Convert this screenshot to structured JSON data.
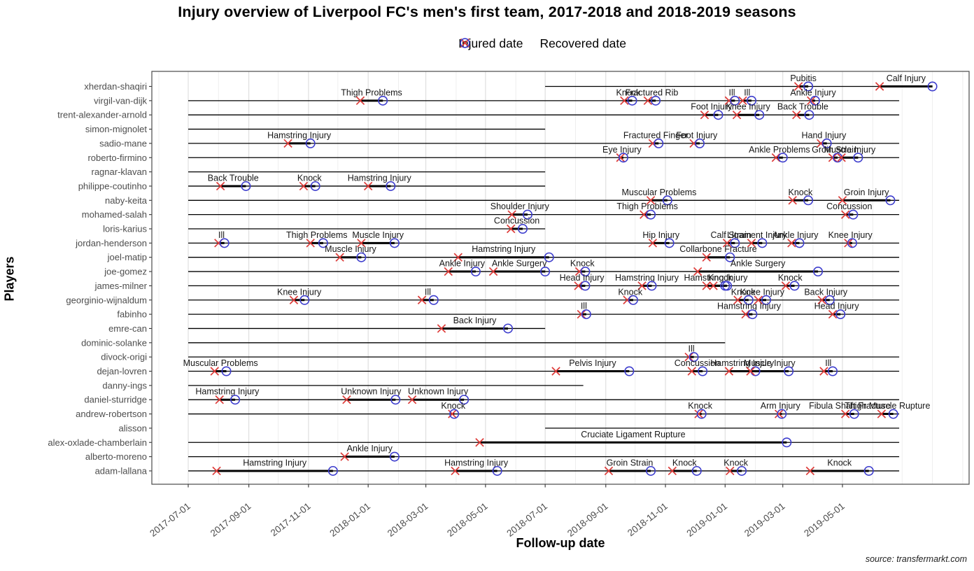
{
  "title": "Injury overview of Liverpool FC's men's first team, 2017-2018 and 2018-2019 seasons",
  "legend": {
    "injured_label": "Injured date",
    "recovered_label": "Recovered date"
  },
  "x_axis": {
    "label": "Follow-up date",
    "ticks": [
      "2017-07-01",
      "2017-09-01",
      "2017-11-01",
      "2018-01-01",
      "2018-03-01",
      "2018-05-01",
      "2018-07-01",
      "2018-09-01",
      "2018-11-01",
      "2019-01-01",
      "2019-03-01",
      "2019-05-01"
    ]
  },
  "y_axis": {
    "label": "Players"
  },
  "source": "source: transfermarkt.com",
  "colors": {
    "injured": "#dd3b38",
    "recovered": "#3c3ccd",
    "follow_up_line": "#000000",
    "injury_segment": "#000000",
    "grid_major": "#d9d9d9",
    "grid_minor": "#eeeeee",
    "panel_border": "#4a4a4a",
    "axis_text": "#4d4d4d",
    "label_text": "#161616"
  },
  "chart_data": {
    "type": "timeline",
    "x_range_visible": [
      "2017-05-25",
      "2019-09-05"
    ],
    "legend_position": "top",
    "grid": "vertical-months",
    "players": [
      {
        "name": "xherdan-shaqiri",
        "follow_up": [
          [
            "2018-07-01",
            "2019-08-01"
          ]
        ],
        "injuries": [
          {
            "label": "Pubitis",
            "injured": "2019-03-17",
            "recovered": "2019-03-27"
          },
          {
            "label": "Calf Injury",
            "injured": "2019-06-08",
            "recovered": "2019-08-01"
          }
        ]
      },
      {
        "name": "virgil-van-dijk",
        "follow_up": [
          [
            "2017-07-01",
            "2019-06-28"
          ]
        ],
        "injuries": [
          {
            "label": "Thigh Problems",
            "injured": "2017-12-24",
            "recovered": "2018-01-16"
          },
          {
            "label": "Knock",
            "injured": "2018-09-20",
            "recovered": "2018-09-28"
          },
          {
            "label": "Fractured Rib",
            "injured": "2018-10-14",
            "recovered": "2018-10-22"
          },
          {
            "label": "Ill",
            "injured": "2019-01-05",
            "recovered": "2019-01-11"
          },
          {
            "label": "Ill",
            "injured": "2019-01-19",
            "recovered": "2019-01-28"
          },
          {
            "label": "Ankle Injury",
            "injured": "2019-03-30",
            "recovered": "2019-04-03"
          }
        ]
      },
      {
        "name": "trent-alexander-arnold",
        "follow_up": [
          [
            "2017-07-01",
            "2019-06-28"
          ]
        ],
        "injuries": [
          {
            "label": "Foot Injury",
            "injured": "2018-12-11",
            "recovered": "2018-12-25"
          },
          {
            "label": "Knee Injury",
            "injured": "2019-01-13",
            "recovered": "2019-02-05"
          },
          {
            "label": "Back Trouble",
            "injured": "2019-03-15",
            "recovered": "2019-03-28"
          }
        ]
      },
      {
        "name": "simon-mignolet",
        "follow_up": [
          [
            "2017-07-01",
            "2018-07-01"
          ]
        ],
        "injuries": []
      },
      {
        "name": "sadio-mane",
        "follow_up": [
          [
            "2017-07-01",
            "2019-06-28"
          ]
        ],
        "injuries": [
          {
            "label": "Hamstring Injury",
            "injured": "2017-10-11",
            "recovered": "2017-11-03"
          },
          {
            "label": "Fractured Finger",
            "injured": "2018-10-19",
            "recovered": "2018-10-25"
          },
          {
            "label": "Foot Injury",
            "injured": "2018-11-30",
            "recovered": "2018-12-06"
          },
          {
            "label": "Hand Injury",
            "injured": "2019-04-09",
            "recovered": "2019-04-15"
          }
        ]
      },
      {
        "name": "roberto-firmino",
        "follow_up": [
          [
            "2017-07-01",
            "2019-06-28"
          ]
        ],
        "injuries": [
          {
            "label": "Eye Injury",
            "injured": "2018-09-16",
            "recovered": "2018-09-19"
          },
          {
            "label": "Ankle Problems",
            "injured": "2019-02-22",
            "recovered": "2019-03-01"
          },
          {
            "label": "Groin Strain",
            "injured": "2019-04-21",
            "recovered": "2019-04-26"
          },
          {
            "label": "Muscle Injury",
            "injured": "2019-04-30",
            "recovered": "2019-05-17"
          }
        ]
      },
      {
        "name": "ragnar-klavan",
        "follow_up": [
          [
            "2017-07-01",
            "2018-07-01"
          ]
        ],
        "injuries": []
      },
      {
        "name": "philippe-coutinho",
        "follow_up": [
          [
            "2017-07-01",
            "2018-07-01"
          ]
        ],
        "injuries": [
          {
            "label": "Back Trouble",
            "injured": "2017-08-03",
            "recovered": "2017-08-29"
          },
          {
            "label": "Knock",
            "injured": "2017-10-27",
            "recovered": "2017-11-08"
          },
          {
            "label": "Hamstring Injury",
            "injured": "2018-01-01",
            "recovered": "2018-01-24"
          }
        ]
      },
      {
        "name": "naby-keita",
        "follow_up": [
          [
            "2017-07-01",
            "2019-06-28"
          ]
        ],
        "injuries": [
          {
            "label": "Muscular Problems",
            "injured": "2018-10-17",
            "recovered": "2018-11-03"
          },
          {
            "label": "Knock",
            "injured": "2019-03-11",
            "recovered": "2019-03-27"
          },
          {
            "label": "Groin Injury",
            "injured": "2019-05-01",
            "recovered": "2019-06-19"
          }
        ]
      },
      {
        "name": "mohamed-salah",
        "follow_up": [
          [
            "2017-07-01",
            "2019-06-28"
          ]
        ],
        "injuries": [
          {
            "label": "Shoulder Injury",
            "injured": "2018-05-28",
            "recovered": "2018-06-13"
          },
          {
            "label": "Thigh Problems",
            "injured": "2018-10-10",
            "recovered": "2018-10-17"
          },
          {
            "label": "Concussion",
            "injured": "2019-05-04",
            "recovered": "2019-05-12"
          }
        ]
      },
      {
        "name": "loris-karius",
        "follow_up": [
          [
            "2017-07-01",
            "2018-07-01"
          ]
        ],
        "injuries": [
          {
            "label": "Concussion",
            "injured": "2018-05-27",
            "recovered": "2018-06-08"
          }
        ]
      },
      {
        "name": "jordan-henderson",
        "follow_up": [
          [
            "2017-07-01",
            "2019-06-28"
          ]
        ],
        "injuries": [
          {
            "label": "Ill",
            "injured": "2017-08-01",
            "recovered": "2017-08-07"
          },
          {
            "label": "Thigh Problems",
            "injured": "2017-11-03",
            "recovered": "2017-11-16"
          },
          {
            "label": "Muscle Injury",
            "injured": "2017-12-25",
            "recovered": "2018-01-28"
          },
          {
            "label": "Hip Injury",
            "injured": "2018-10-19",
            "recovered": "2018-11-05"
          },
          {
            "label": "Calf Strain",
            "injured": "2019-01-03",
            "recovered": "2019-01-11"
          },
          {
            "label": "Ligament Injury",
            "injured": "2019-01-28",
            "recovered": "2019-02-08"
          },
          {
            "label": "Ankle Injury",
            "injured": "2019-03-10",
            "recovered": "2019-03-18"
          },
          {
            "label": "Knee Injury",
            "injured": "2019-05-07",
            "recovered": "2019-05-11"
          }
        ]
      },
      {
        "name": "joel-matip",
        "follow_up": [
          [
            "2017-07-01",
            "2019-06-28"
          ]
        ],
        "injuries": [
          {
            "label": "Muscle Injury",
            "injured": "2017-12-03",
            "recovered": "2017-12-25"
          },
          {
            "label": "Hamstring Injury",
            "injured": "2018-04-03",
            "recovered": "2018-07-05"
          },
          {
            "label": "Collarbone Fracture",
            "injured": "2018-12-13",
            "recovered": "2019-01-06"
          }
        ]
      },
      {
        "name": "joe-gomez",
        "follow_up": [
          [
            "2017-07-01",
            "2019-06-28"
          ]
        ],
        "injuries": [
          {
            "label": "Ankle Injury",
            "injured": "2018-03-24",
            "recovered": "2018-04-21"
          },
          {
            "label": "Ankle Surgery",
            "injured": "2018-05-09",
            "recovered": "2018-07-01"
          },
          {
            "label": "Knock",
            "injured": "2018-08-05",
            "recovered": "2018-08-11"
          },
          {
            "label": "Ankle Surgery",
            "injured": "2018-12-04",
            "recovered": "2019-04-06"
          }
        ]
      },
      {
        "name": "james-milner",
        "follow_up": [
          [
            "2017-07-01",
            "2019-06-28"
          ]
        ],
        "injuries": [
          {
            "label": "Head Injury",
            "injured": "2018-08-04",
            "recovered": "2018-08-11"
          },
          {
            "label": "Hamstring Injury",
            "injured": "2018-10-08",
            "recovered": "2018-10-18"
          },
          {
            "label": "Hamstring Injury",
            "injured": "2018-12-13",
            "recovered": "2019-01-01"
          },
          {
            "label": "Knock",
            "injured": "2018-12-20",
            "recovered": "2019-01-03"
          },
          {
            "label": "Knock",
            "injured": "2019-03-04",
            "recovered": "2019-03-13"
          }
        ]
      },
      {
        "name": "georginio-wijnaldum",
        "follow_up": [
          [
            "2017-07-01",
            "2019-06-28"
          ]
        ],
        "injuries": [
          {
            "label": "Knee Injury",
            "injured": "2017-10-17",
            "recovered": "2017-10-28"
          },
          {
            "label": "Ill",
            "injured": "2018-02-25",
            "recovered": "2018-03-09"
          },
          {
            "label": "Knock",
            "injured": "2018-09-23",
            "recovered": "2018-09-29"
          },
          {
            "label": "Knock",
            "injured": "2019-01-14",
            "recovered": "2019-01-25"
          },
          {
            "label": "Knee Injury",
            "injured": "2019-02-04",
            "recovered": "2019-02-12"
          },
          {
            "label": "Back Injury",
            "injured": "2019-04-10",
            "recovered": "2019-04-18"
          }
        ]
      },
      {
        "name": "fabinho",
        "follow_up": [
          [
            "2017-07-01",
            "2019-06-28"
          ]
        ],
        "injuries": [
          {
            "label": "Ill",
            "injured": "2018-08-07",
            "recovered": "2018-08-12"
          },
          {
            "label": "Hamstring Injury",
            "injured": "2019-01-22",
            "recovered": "2019-01-29"
          },
          {
            "label": "Head Injury",
            "injured": "2019-04-21",
            "recovered": "2019-04-29"
          }
        ]
      },
      {
        "name": "emre-can",
        "follow_up": [
          [
            "2017-07-01",
            "2018-07-01"
          ]
        ],
        "injuries": [
          {
            "label": "Back Injury",
            "injured": "2018-03-17",
            "recovered": "2018-05-24"
          }
        ]
      },
      {
        "name": "dominic-solanke",
        "follow_up": [
          [
            "2017-07-01",
            "2019-01-01"
          ]
        ],
        "injuries": []
      },
      {
        "name": "divock-origi",
        "follow_up": [
          [
            "2017-07-01",
            "2019-06-28"
          ]
        ],
        "injuries": [
          {
            "label": "Ill",
            "injured": "2018-11-25",
            "recovered": "2018-11-30"
          }
        ]
      },
      {
        "name": "dejan-lovren",
        "follow_up": [
          [
            "2017-07-01",
            "2019-06-28"
          ]
        ],
        "injuries": [
          {
            "label": "Muscular Problems",
            "injured": "2017-07-28",
            "recovered": "2017-08-09"
          },
          {
            "label": "Pelvis Injury",
            "injured": "2018-07-12",
            "recovered": "2018-09-25"
          },
          {
            "label": "Concussion",
            "injured": "2018-11-28",
            "recovered": "2018-12-09"
          },
          {
            "label": "Hamstring Injury",
            "injured": "2019-01-05",
            "recovered": "2019-02-01"
          },
          {
            "label": "Muscle Injury",
            "injured": "2019-01-27",
            "recovered": "2019-03-07"
          },
          {
            "label": "Ill",
            "injured": "2019-04-12",
            "recovered": "2019-04-21"
          }
        ]
      },
      {
        "name": "danny-ings",
        "follow_up": [
          [
            "2017-07-01",
            "2018-08-09"
          ]
        ],
        "injuries": []
      },
      {
        "name": "daniel-sturridge",
        "follow_up": [
          [
            "2017-07-01",
            "2019-06-28"
          ]
        ],
        "injuries": [
          {
            "label": "Hamstring Injury",
            "injured": "2017-08-02",
            "recovered": "2017-08-18"
          },
          {
            "label": "Unknown Injury",
            "injured": "2017-12-10",
            "recovered": "2018-01-29"
          },
          {
            "label": "Unknown Injury",
            "injured": "2018-02-15",
            "recovered": "2018-04-09"
          }
        ]
      },
      {
        "name": "andrew-robertson",
        "follow_up": [
          [
            "2017-07-01",
            "2019-06-28"
          ]
        ],
        "injuries": [
          {
            "label": "Knock",
            "injured": "2018-03-28",
            "recovered": "2018-03-30"
          },
          {
            "label": "Knock",
            "injured": "2018-12-05",
            "recovered": "2018-12-08"
          },
          {
            "label": "Arm Injury",
            "injured": "2019-02-25",
            "recovered": "2019-02-28"
          },
          {
            "label": "Fibula Shaft Fracture",
            "injured": "2019-05-04",
            "recovered": "2019-05-13"
          },
          {
            "label": "Thigh Muscle Rupture",
            "injured": "2019-06-10",
            "recovered": "2019-06-22"
          }
        ]
      },
      {
        "name": "alisson",
        "follow_up": [
          [
            "2018-07-01",
            "2019-06-28"
          ]
        ],
        "injuries": []
      },
      {
        "name": "alex-oxlade-chamberlain",
        "follow_up": [
          [
            "2017-07-01",
            "2019-06-28"
          ]
        ],
        "injuries": [
          {
            "label": "Cruciate Ligament Rupture",
            "injured": "2018-04-25",
            "recovered": "2019-03-05"
          }
        ]
      },
      {
        "name": "alberto-moreno",
        "follow_up": [
          [
            "2017-07-01",
            "2019-06-28"
          ]
        ],
        "injuries": [
          {
            "label": "Ankle Injury",
            "injured": "2017-12-08",
            "recovered": "2018-01-28"
          }
        ]
      },
      {
        "name": "adam-lallana",
        "follow_up": [
          [
            "2017-07-01",
            "2019-06-28"
          ]
        ],
        "injuries": [
          {
            "label": "Hamstring Injury",
            "injured": "2017-07-30",
            "recovered": "2017-11-26"
          },
          {
            "label": "Hamstring Injury",
            "injured": "2018-03-31",
            "recovered": "2018-05-13"
          },
          {
            "label": "Groin Strain",
            "injured": "2018-09-04",
            "recovered": "2018-10-17"
          },
          {
            "label": "Knock",
            "injured": "2018-11-08",
            "recovered": "2018-12-03"
          },
          {
            "label": "Knock",
            "injured": "2019-01-06",
            "recovered": "2019-01-18"
          },
          {
            "label": "Knock",
            "injured": "2019-03-29",
            "recovered": "2019-05-28"
          }
        ]
      }
    ]
  }
}
